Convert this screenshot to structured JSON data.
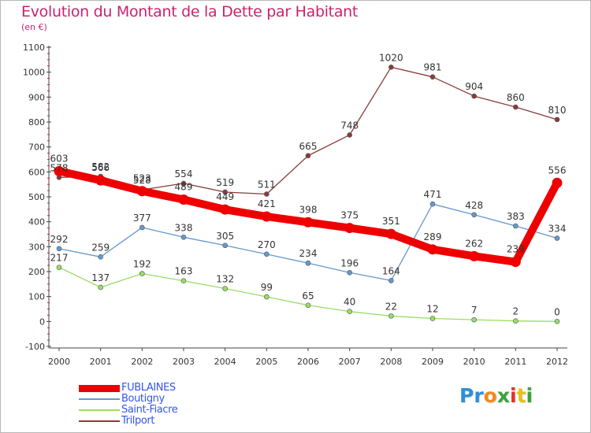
{
  "title": "Evolution du Montant de la Dette par Habitant",
  "subtitle": "(en €)",
  "logo": {
    "letters": [
      {
        "ch": "P",
        "color": "#2d8fd6"
      },
      {
        "ch": "r",
        "color": "#2d8fd6"
      },
      {
        "ch": "o",
        "color": "#f08a1c"
      },
      {
        "ch": "x",
        "color": "#3aa33a"
      },
      {
        "ch": "i",
        "color": "#e3312b"
      },
      {
        "ch": "t",
        "color": "#e3c21c"
      },
      {
        "ch": "i",
        "color": "#3aa33a"
      }
    ]
  },
  "chart_data": {
    "type": "line",
    "title": "Evolution du Montant de la Dette par Habitant",
    "ylabel": "(en €)",
    "x": [
      "2000",
      "2001",
      "2002",
      "2003",
      "2004",
      "2005",
      "2006",
      "2007",
      "2008",
      "2009",
      "2010",
      "2011",
      "2012"
    ],
    "yticks": [
      "-100",
      "0",
      "100",
      "200",
      "300",
      "400",
      "500",
      "600",
      "700",
      "800",
      "900",
      "1000",
      "1100"
    ],
    "ylim": [
      -100,
      1100
    ],
    "grid": false,
    "legend_position": "bottom-left",
    "series": [
      {
        "name": "FUBLAINES",
        "color": "#ee0000",
        "values": [
          603,
          566,
          523,
          489,
          449,
          421,
          398,
          375,
          351,
          289,
          262,
          239,
          556
        ]
      },
      {
        "name": "Boutigny",
        "color": "#6699cc",
        "values": [
          292,
          259,
          377,
          338,
          305,
          270,
          234,
          196,
          164,
          471,
          428,
          383,
          334
        ]
      },
      {
        "name": "Saint-Fiacre",
        "color": "#99dd66",
        "values": [
          217,
          137,
          192,
          163,
          132,
          99,
          65,
          40,
          22,
          12,
          7,
          2,
          0
        ]
      },
      {
        "name": "Trilport",
        "color": "#8b3a3a",
        "values": [
          578,
          582,
          528,
          554,
          519,
          511,
          665,
          748,
          1020,
          981,
          904,
          860,
          810
        ]
      }
    ]
  }
}
